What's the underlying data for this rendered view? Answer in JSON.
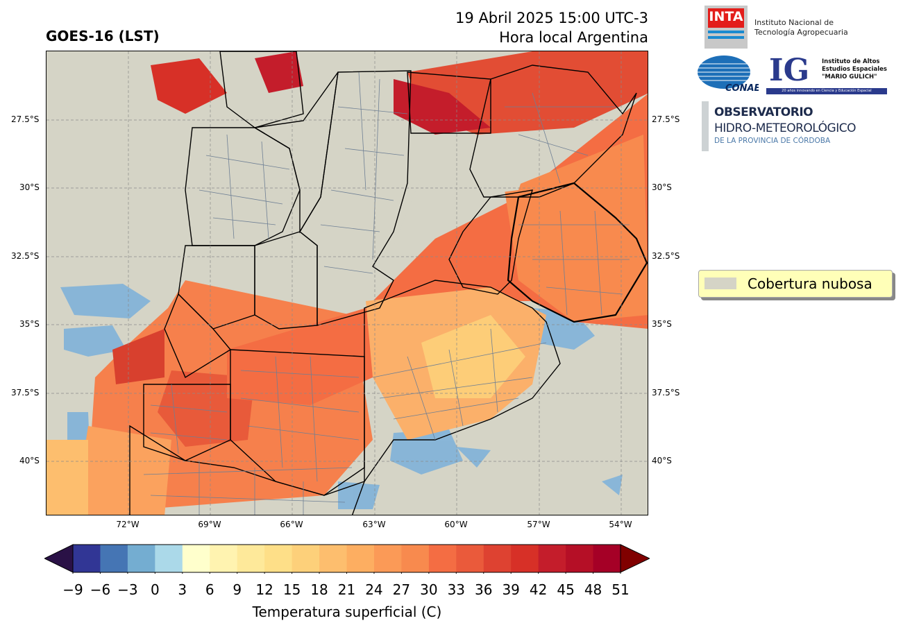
{
  "header": {
    "title": "GOES-16 (LST)",
    "date_line": "19 Abril 2025 15:00 UTC-3",
    "time_line": "Hora local Argentina"
  },
  "map": {
    "lat_labels": [
      "27.5°S",
      "30°S",
      "32.5°S",
      "35°S",
      "37.5°S",
      "40°S"
    ],
    "lon_labels": [
      "72°W",
      "69°W",
      "66°W",
      "63°W",
      "60°W",
      "57°W",
      "54°W"
    ],
    "cloud_color": "#d5d4c6"
  },
  "colorbar": {
    "label": "Temperatura superficial (C)",
    "ticks": [
      "−9",
      "−6",
      "−3",
      "0",
      "3",
      "6",
      "9",
      "12",
      "15",
      "18",
      "21",
      "24",
      "27",
      "30",
      "33",
      "36",
      "39",
      "42",
      "45",
      "48",
      "51"
    ],
    "colors": [
      "#313695",
      "#4575b4",
      "#74add1",
      "#abd9e9",
      "#ffffcc",
      "#fff3b0",
      "#fee99a",
      "#fedf88",
      "#fdd07a",
      "#fdbe6e",
      "#fdae61",
      "#fb9a57",
      "#f88a4e",
      "#f46d43",
      "#ea5a3b",
      "#de4231",
      "#d73027",
      "#c41d2b",
      "#b50f26",
      "#a50026"
    ],
    "under_color": "#2a1146",
    "over_color": "#800000"
  },
  "legend": {
    "label": "Cobertura nubosa"
  },
  "logos": {
    "inta_word": "INTA",
    "inta_text": [
      "Instituto Nacional de",
      "Tecnología Agropecuaria"
    ],
    "conae_word": "CONAE",
    "ig_word": "IG",
    "ig_text": [
      "Instituto de Altos",
      "Estudios Espaciales",
      "\"MARIO GULICH\""
    ],
    "ig_bar": "20 años innovando en Ciencia y Educación Espacial",
    "obs_lines": [
      "OBSERVATORIO",
      "HIDRO-METEOROLÓGICO",
      "DE LA PROVINCIA DE CÓRDOBA"
    ]
  }
}
